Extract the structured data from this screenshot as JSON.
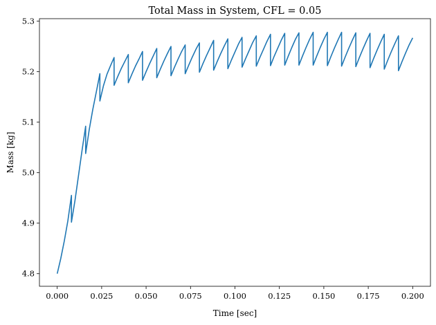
{
  "chart_data": {
    "type": "line",
    "title": "Total Mass in System, CFL = 0.05",
    "xlabel": "Time [sec]",
    "ylabel": "Mass [kg]",
    "xlim": [
      -0.01,
      0.21
    ],
    "ylim": [
      4.775,
      5.305
    ],
    "xticks": [
      0.0,
      0.025,
      0.05,
      0.075,
      0.1,
      0.125,
      0.15,
      0.175,
      0.2
    ],
    "xtick_labels": [
      "0.000",
      "0.025",
      "0.050",
      "0.075",
      "0.100",
      "0.125",
      "0.150",
      "0.175",
      "0.200"
    ],
    "yticks": [
      4.8,
      4.9,
      5.0,
      5.1,
      5.2,
      5.3
    ],
    "ytick_labels": [
      "4.8",
      "4.9",
      "5.0",
      "5.1",
      "5.2",
      "5.3"
    ],
    "grid": false,
    "series": [
      {
        "color": "#1f77b4",
        "x": [
          0.0,
          0.002,
          0.004,
          0.006,
          0.008,
          0.008,
          0.01,
          0.012,
          0.014,
          0.016,
          0.016,
          0.018,
          0.02,
          0.022,
          0.024,
          0.024,
          0.026,
          0.028,
          0.03,
          0.032,
          0.032,
          0.034,
          0.036,
          0.038,
          0.04,
          0.04,
          0.042,
          0.044,
          0.046,
          0.048,
          0.048,
          0.05,
          0.052,
          0.054,
          0.056,
          0.056,
          0.058,
          0.06,
          0.062,
          0.064,
          0.064,
          0.066,
          0.068,
          0.07,
          0.072,
          0.072,
          0.074,
          0.076,
          0.078,
          0.08,
          0.08,
          0.082,
          0.084,
          0.086,
          0.088,
          0.088,
          0.09,
          0.092,
          0.094,
          0.096,
          0.096,
          0.098,
          0.1,
          0.102,
          0.104,
          0.104,
          0.106,
          0.108,
          0.11,
          0.112,
          0.112,
          0.114,
          0.116,
          0.118,
          0.12,
          0.12,
          0.122,
          0.124,
          0.126,
          0.128,
          0.128,
          0.13,
          0.132,
          0.134,
          0.136,
          0.136,
          0.138,
          0.14,
          0.142,
          0.144,
          0.144,
          0.146,
          0.148,
          0.15,
          0.152,
          0.152,
          0.154,
          0.156,
          0.158,
          0.16,
          0.16,
          0.162,
          0.164,
          0.166,
          0.168,
          0.168,
          0.17,
          0.172,
          0.174,
          0.176,
          0.176,
          0.178,
          0.18,
          0.182,
          0.184,
          0.184,
          0.186,
          0.188,
          0.19,
          0.192,
          0.192,
          0.194,
          0.196,
          0.198,
          0.2
        ],
        "y": [
          4.8,
          4.83,
          4.865,
          4.905,
          4.955,
          4.902,
          4.945,
          4.995,
          5.045,
          5.092,
          5.038,
          5.085,
          5.125,
          5.16,
          5.196,
          5.142,
          5.172,
          5.195,
          5.212,
          5.228,
          5.173,
          5.19,
          5.206,
          5.22,
          5.234,
          5.178,
          5.195,
          5.211,
          5.225,
          5.24,
          5.183,
          5.2,
          5.216,
          5.231,
          5.246,
          5.188,
          5.205,
          5.221,
          5.236,
          5.25,
          5.192,
          5.209,
          5.225,
          5.24,
          5.253,
          5.196,
          5.213,
          5.229,
          5.244,
          5.257,
          5.199,
          5.216,
          5.232,
          5.247,
          5.262,
          5.203,
          5.22,
          5.236,
          5.251,
          5.265,
          5.206,
          5.223,
          5.239,
          5.255,
          5.268,
          5.209,
          5.226,
          5.242,
          5.258,
          5.271,
          5.211,
          5.228,
          5.244,
          5.26,
          5.274,
          5.212,
          5.23,
          5.246,
          5.262,
          5.276,
          5.213,
          5.231,
          5.248,
          5.264,
          5.277,
          5.213,
          5.231,
          5.248,
          5.264,
          5.278,
          5.213,
          5.231,
          5.248,
          5.264,
          5.278,
          5.212,
          5.23,
          5.247,
          5.263,
          5.278,
          5.211,
          5.229,
          5.246,
          5.262,
          5.277,
          5.21,
          5.228,
          5.245,
          5.261,
          5.276,
          5.208,
          5.226,
          5.243,
          5.259,
          5.274,
          5.205,
          5.223,
          5.24,
          5.256,
          5.271,
          5.202,
          5.22,
          5.237,
          5.253,
          5.267
        ]
      }
    ]
  }
}
